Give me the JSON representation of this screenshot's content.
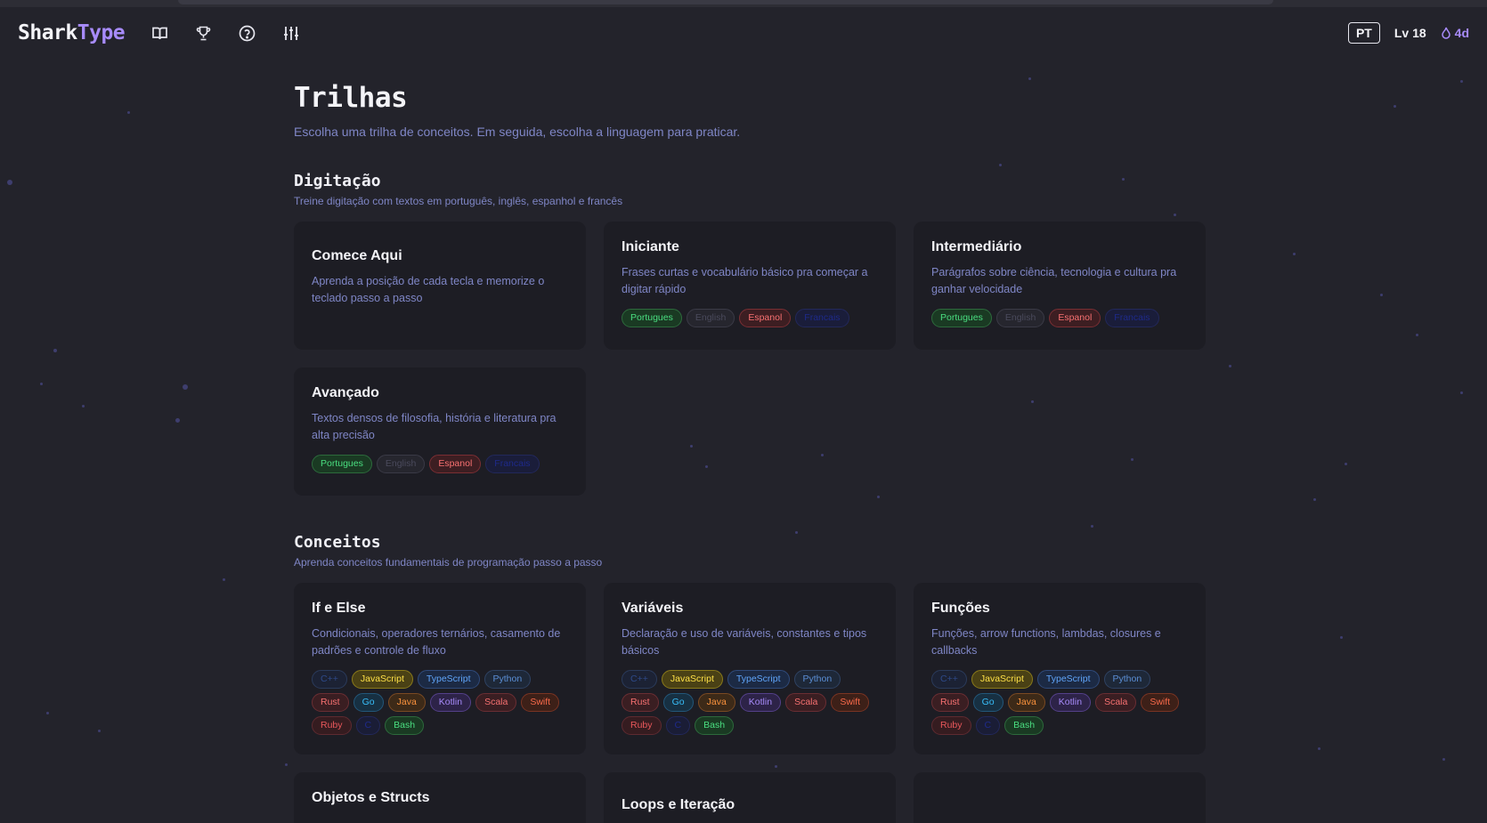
{
  "header": {
    "logo_main": "Shark",
    "logo_accent": "Type",
    "lang": "PT",
    "level": "Lv 18",
    "streak": "4d"
  },
  "page": {
    "title": "Trilhas",
    "subtitle": "Escolha uma trilha de conceitos. Em seguida, escolha a linguagem para praticar."
  },
  "sections": [
    {
      "title": "Digitação",
      "subtitle": "Treine digitação com textos em português, inglês, espanhol e francês",
      "cards": [
        {
          "title": "Comece Aqui",
          "desc": "Aprenda a posição de cada tecla e memorize o teclado passo a passo",
          "chips": []
        },
        {
          "title": "Iniciante",
          "desc": "Frases curtas e vocabulário básico pra começar a digitar rápido",
          "chips": [
            {
              "label": "Portugues",
              "cls": "c-pt"
            },
            {
              "label": "English",
              "cls": "c-en"
            },
            {
              "label": "Espanol",
              "cls": "c-es"
            },
            {
              "label": "Francais",
              "cls": "c-fr"
            }
          ]
        },
        {
          "title": "Intermediário",
          "desc": "Parágrafos sobre ciência, tecnologia e cultura pra ganhar velocidade",
          "chips": [
            {
              "label": "Portugues",
              "cls": "c-pt"
            },
            {
              "label": "English",
              "cls": "c-en"
            },
            {
              "label": "Espanol",
              "cls": "c-es"
            },
            {
              "label": "Francais",
              "cls": "c-fr"
            }
          ]
        },
        {
          "title": "Avançado",
          "desc": "Textos densos de filosofia, história e literatura pra alta precisão",
          "chips": [
            {
              "label": "Portugues",
              "cls": "c-pt"
            },
            {
              "label": "English",
              "cls": "c-en"
            },
            {
              "label": "Espanol",
              "cls": "c-es"
            },
            {
              "label": "Francais",
              "cls": "c-fr"
            }
          ]
        }
      ]
    },
    {
      "title": "Conceitos",
      "subtitle": "Aprenda conceitos fundamentais de programação passo a passo",
      "cards": [
        {
          "title": "If e Else",
          "desc": "Condicionais, operadores ternários, casamento de padrões e controle de fluxo",
          "chips": [
            {
              "label": "C++",
              "cls": "c-cpp"
            },
            {
              "label": "JavaScript",
              "cls": "c-js"
            },
            {
              "label": "TypeScript",
              "cls": "c-ts"
            },
            {
              "label": "Python",
              "cls": "c-py"
            },
            {
              "label": "Rust",
              "cls": "c-rust"
            },
            {
              "label": "Go",
              "cls": "c-go"
            },
            {
              "label": "Java",
              "cls": "c-java"
            },
            {
              "label": "Kotlin",
              "cls": "c-kotlin"
            },
            {
              "label": "Scala",
              "cls": "c-scala"
            },
            {
              "label": "Swift",
              "cls": "c-swift"
            },
            {
              "label": "Ruby",
              "cls": "c-ruby"
            },
            {
              "label": "C",
              "cls": "c-c"
            },
            {
              "label": "Bash",
              "cls": "c-bash"
            }
          ]
        },
        {
          "title": "Variáveis",
          "desc": "Declaração e uso de variáveis, constantes e tipos básicos",
          "chips": [
            {
              "label": "C++",
              "cls": "c-cpp"
            },
            {
              "label": "JavaScript",
              "cls": "c-js"
            },
            {
              "label": "TypeScript",
              "cls": "c-ts"
            },
            {
              "label": "Python",
              "cls": "c-py"
            },
            {
              "label": "Rust",
              "cls": "c-rust"
            },
            {
              "label": "Go",
              "cls": "c-go"
            },
            {
              "label": "Java",
              "cls": "c-java"
            },
            {
              "label": "Kotlin",
              "cls": "c-kotlin"
            },
            {
              "label": "Scala",
              "cls": "c-scala"
            },
            {
              "label": "Swift",
              "cls": "c-swift"
            },
            {
              "label": "Ruby",
              "cls": "c-ruby"
            },
            {
              "label": "C",
              "cls": "c-c"
            },
            {
              "label": "Bash",
              "cls": "c-bash"
            }
          ]
        },
        {
          "title": "Funções",
          "desc": "Funções, arrow functions, lambdas, closures e callbacks",
          "chips": [
            {
              "label": "C++",
              "cls": "c-cpp"
            },
            {
              "label": "JavaScript",
              "cls": "c-js"
            },
            {
              "label": "TypeScript",
              "cls": "c-ts"
            },
            {
              "label": "Python",
              "cls": "c-py"
            },
            {
              "label": "Rust",
              "cls": "c-rust"
            },
            {
              "label": "Go",
              "cls": "c-go"
            },
            {
              "label": "Java",
              "cls": "c-java"
            },
            {
              "label": "Kotlin",
              "cls": "c-kotlin"
            },
            {
              "label": "Scala",
              "cls": "c-scala"
            },
            {
              "label": "Swift",
              "cls": "c-swift"
            },
            {
              "label": "Ruby",
              "cls": "c-ruby"
            },
            {
              "label": "C",
              "cls": "c-c"
            },
            {
              "label": "Bash",
              "cls": "c-bash"
            }
          ]
        },
        {
          "title": "Objetos e Structs",
          "desc": "",
          "chips": []
        },
        {
          "title": "Loops e Iteração",
          "desc": "",
          "chips": []
        },
        {
          "title": "",
          "desc": "",
          "chips": []
        }
      ]
    }
  ]
}
